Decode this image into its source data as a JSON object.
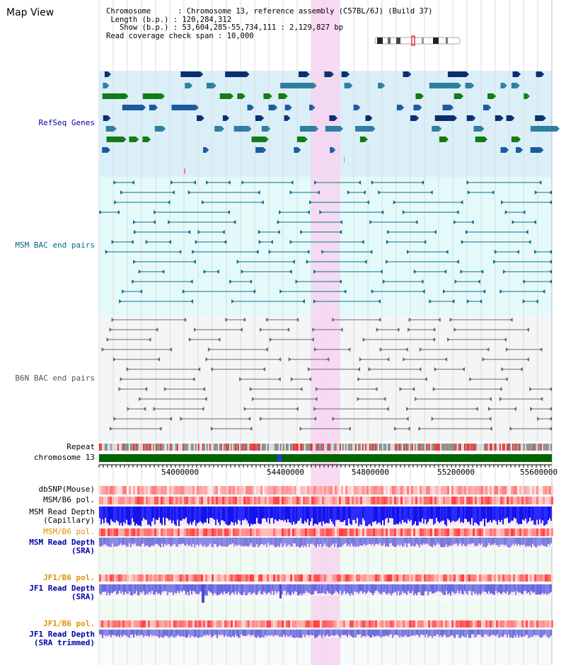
{
  "title": "Map View",
  "info": {
    "line1": "Chromosome      : Chromosome 13, reference assembly (C57BL/6J) (Build 37)",
    "line2": "Length (b.p.) : 120,284,312",
    "line3": "Show (b.p.) : 53,604,285-55,734,111 : 2,129,827 bp",
    "line4": "Read coverage check span : 10,000"
  },
  "tracks": {
    "refseq": "RefSeq Genes",
    "msm_bac": "MSM BAC end pairs",
    "b6n_bac": "B6N BAC end pairs",
    "repeat": "Repeat",
    "chromosome": "chromosome 13",
    "dbsnp": "dbSNP(Mouse)",
    "msm_pol1": "MSM/B6 pol.",
    "msm_depth_cap_1": "MSM Read Depth",
    "msm_depth_cap_2": "(Capillary)",
    "msm_pol2": "MSM/B6 pol.",
    "msm_depth_sra_1": "MSM Read Depth",
    "msm_depth_sra_2": "(SRA)",
    "jf1_pol1": "JF1/B6 pol.",
    "jf1_depth_sra_1": "JF1 Read Depth",
    "jf1_depth_sra_2": "(SRA)",
    "jf1_pol2": "JF1/B6 pol.",
    "jf1_depth_trim_1": "JF1 Read Depth",
    "jf1_depth_trim_2": "(SRA trimmed)"
  },
  "axis": {
    "ticks": [
      "54000000",
      "54400000",
      "54800000",
      "55200000",
      "55600000"
    ]
  },
  "colors": {
    "refseq_bg": "#dbeff9",
    "msm_bg": "#e4fafa",
    "b6n_bg": "#f3f5f6",
    "highlight": "#f7d4f0",
    "chrom_green": "#006400",
    "label_blue": "#0000aa",
    "label_teal": "#006888",
    "label_gray": "#555555",
    "label_orange": "#e09000"
  }
}
